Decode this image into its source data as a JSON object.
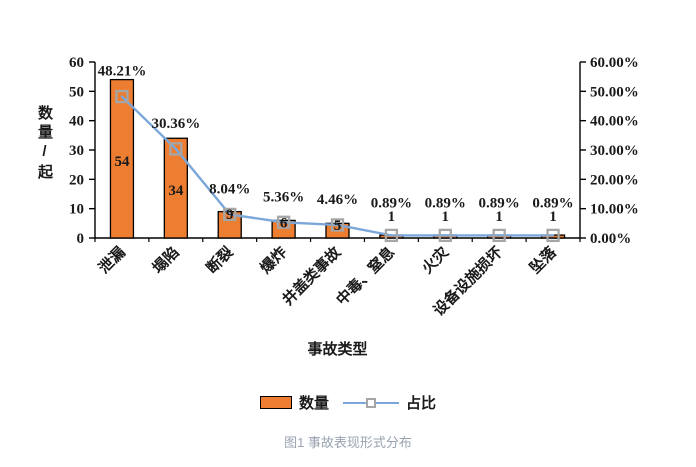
{
  "figure": {
    "caption": "图1 事故表现形式分布"
  },
  "chart_data": {
    "type": "bar",
    "subtype": "combo-bar-line",
    "categories": [
      "泄漏",
      "塌陷",
      "断裂",
      "爆炸",
      "井盖类事故",
      "中毒、窒息",
      "火灾",
      "设备设施损坏",
      "坠落"
    ],
    "series": [
      {
        "name": "数量",
        "type": "bar",
        "axis": "left",
        "values": [
          54,
          34,
          9,
          6,
          5,
          1,
          1,
          1,
          1
        ],
        "labels": [
          "54",
          "34",
          "9",
          "6",
          "5",
          "1",
          "1",
          "1",
          "1"
        ]
      },
      {
        "name": "占比",
        "type": "line",
        "axis": "right",
        "values": [
          48.21,
          30.36,
          8.04,
          5.36,
          4.46,
          0.89,
          0.89,
          0.89,
          0.89
        ],
        "labels": [
          "48.21%",
          "30.36%",
          "8.04%",
          "5.36%",
          "4.46%",
          "0.89%",
          "0.89%",
          "0.89%",
          "0.89%"
        ]
      }
    ],
    "x_axis_title": "事故类型",
    "left_axis": {
      "title": "数量/起",
      "min": 0,
      "max": 60,
      "ticks": [
        "0",
        "10",
        "20",
        "30",
        "40",
        "50",
        "60"
      ]
    },
    "right_axis": {
      "min": 0,
      "max": 60,
      "ticks": [
        "0.00%",
        "10.00%",
        "20.00%",
        "30.00%",
        "40.00%",
        "50.00%",
        "60.00%"
      ]
    },
    "legend_position": "bottom",
    "grid": false,
    "colors": {
      "bar": "#ED7D31",
      "bar_border": "#000000",
      "line": "#7BA7DA",
      "marker": "#A6A6A6",
      "axis": "#000000",
      "label": "#1a1a1a",
      "caption": "#98A3B1"
    }
  }
}
